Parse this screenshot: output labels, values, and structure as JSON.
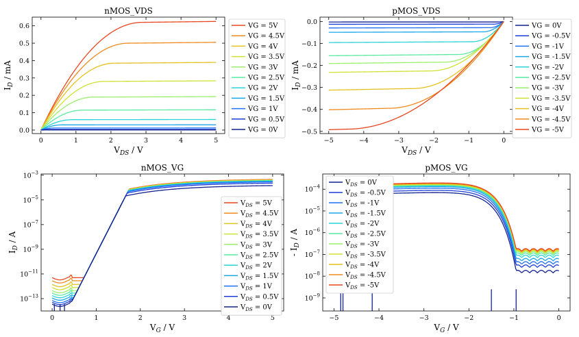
{
  "chart_data": [
    {
      "type": "line",
      "title": "nMOS_VDS",
      "xlabel": {
        "main": "V",
        "sub": "DS",
        "unit": " / V"
      },
      "ylabel": {
        "main": "I",
        "sub": "D",
        "unit": " / mA"
      },
      "xlim": [
        -0.25,
        5.25
      ],
      "ylim": [
        -0.02,
        0.65
      ],
      "yscale": "linear",
      "xticks": [
        0,
        1,
        2,
        3,
        4,
        5
      ],
      "yticks": [
        0.0,
        0.1,
        0.2,
        0.3,
        0.4,
        0.5,
        0.6
      ],
      "ytick_labels": [
        "0.0",
        "0.1",
        "0.2",
        "0.3",
        "0.4",
        "0.5",
        "0.6"
      ],
      "legend_placement": "right",
      "model": "nmos_vds",
      "series": [
        {
          "name": "VG = 5V",
          "label": {
            "text": "VG = 5V"
          },
          "color": "#e8461f",
          "isat": 0.62,
          "vsat": 2.9
        },
        {
          "name": "VG = 4.5V",
          "label": {
            "text": "VG = 4.5V"
          },
          "color": "#f08a1c",
          "isat": 0.5,
          "vsat": 2.5
        },
        {
          "name": "VG = 4V",
          "label": {
            "text": "VG = 4V"
          },
          "color": "#e3c11f",
          "isat": 0.385,
          "vsat": 2.1
        },
        {
          "name": "VG = 3.5V",
          "label": {
            "text": "VG = 3.5V"
          },
          "color": "#cfe233",
          "isat": 0.28,
          "vsat": 1.8
        },
        {
          "name": "VG = 3V",
          "label": {
            "text": "VG = 3V"
          },
          "color": "#9af06a",
          "isat": 0.19,
          "vsat": 1.5
        },
        {
          "name": "VG = 2.5V",
          "label": {
            "text": "VG = 2.5V"
          },
          "color": "#5aeaa0",
          "isat": 0.115,
          "vsat": 1.2
        },
        {
          "name": "VG = 2V",
          "label": {
            "text": "VG = 2V"
          },
          "color": "#29d3d8",
          "isat": 0.06,
          "vsat": 0.9
        },
        {
          "name": "VG = 1.5V",
          "label": {
            "text": "VG = 1.5V"
          },
          "color": "#1aa6ea",
          "isat": 0.03,
          "vsat": 0.6
        },
        {
          "name": "VG = 1V",
          "label": {
            "text": "VG = 1V"
          },
          "color": "#1f6ff0",
          "isat": 0.012,
          "vsat": 0.4
        },
        {
          "name": "VG = 0.5V",
          "label": {
            "text": "VG = 0.5V"
          },
          "color": "#1e3dd6",
          "isat": 0.004,
          "vsat": 0.3
        },
        {
          "name": "VG = 0V",
          "label": {
            "text": "VG = 0V"
          },
          "color": "#13208f",
          "isat": 0.001,
          "vsat": 0.2
        }
      ]
    },
    {
      "type": "line",
      "title": "pMOS_VDS",
      "xlabel": {
        "main": "V",
        "sub": "DS",
        "unit": " / V"
      },
      "ylabel": {
        "main": "I",
        "sub": "D",
        "unit": " / mA"
      },
      "xlim": [
        -5.25,
        0.25
      ],
      "ylim": [
        -0.51,
        0.02
      ],
      "yscale": "linear",
      "xticks": [
        -5,
        -4,
        -3,
        -2,
        -1,
        0
      ],
      "yticks": [
        0.0,
        -0.1,
        -0.2,
        -0.3,
        -0.4,
        -0.5
      ],
      "ytick_labels": [
        "0.0",
        "−0.1",
        "−0.2",
        "−0.3",
        "−0.4",
        "−0.5"
      ],
      "legend_placement": "right",
      "model": "pmos_vds",
      "series": [
        {
          "name": "VG = 0V",
          "label": {
            "text": "VG = 0V"
          },
          "color": "#13208f",
          "isat": -0.002,
          "vsat": -0.2
        },
        {
          "name": "VG = -0.5V",
          "label": {
            "text": "VG = -0.5V"
          },
          "color": "#1e3dd6",
          "isat": -0.012,
          "vsat": -0.3
        },
        {
          "name": "VG = -1V",
          "label": {
            "text": "VG = -1V"
          },
          "color": "#1f6ff0",
          "isat": -0.028,
          "vsat": -0.4
        },
        {
          "name": "VG = -1.5V",
          "label": {
            "text": "VG = -1.5V"
          },
          "color": "#1aa6ea",
          "isat": -0.047,
          "vsat": -0.6
        },
        {
          "name": "VG = -2V",
          "label": {
            "text": "VG = -2V"
          },
          "color": "#29d3d8",
          "isat": -0.092,
          "vsat": -0.9
        },
        {
          "name": "VG = -2.5V",
          "label": {
            "text": "VG = -2.5V"
          },
          "color": "#5aeaa0",
          "isat": -0.15,
          "vsat": -1.3
        },
        {
          "name": "VG = -3V",
          "label": {
            "text": "VG = -3V"
          },
          "color": "#9af06a",
          "isat": -0.185,
          "vsat": -1.7
        },
        {
          "name": "VG = -3.5V",
          "label": {
            "text": "VG = -3.5V"
          },
          "color": "#cfe233",
          "isat": -0.225,
          "vsat": -2.1
        },
        {
          "name": "VG = -4V",
          "label": {
            "text": "VG = -4V"
          },
          "color": "#e3c11f",
          "isat": -0.305,
          "vsat": -2.6
        },
        {
          "name": "VG = -4.5V",
          "label": {
            "text": "VG = -4.5V"
          },
          "color": "#f08a1c",
          "isat": -0.395,
          "vsat": -3.3
        },
        {
          "name": "VG = -5V",
          "label": {
            "text": "VG = -5V"
          },
          "color": "#e8461f",
          "isat": -0.49,
          "vsat": -4.5
        }
      ]
    },
    {
      "type": "line",
      "title": "nMOS_VG",
      "xlabel": {
        "main": "V",
        "sub": "G",
        "unit": " / V"
      },
      "ylabel": {
        "main": "I",
        "sub": "D",
        "unit": " / A"
      },
      "xlim": [
        -0.25,
        5.25
      ],
      "ylim": [
        -14,
        -2.9
      ],
      "yscale": "log",
      "xticks": [
        0,
        1,
        2,
        3,
        4,
        5
      ],
      "yticks": [
        -13,
        -11,
        -9,
        -7,
        -5,
        -3
      ],
      "legend_placement": "center-right",
      "model": "nmos_vg",
      "series": [
        {
          "name": "VDS = 5V",
          "label": {
            "main": "V",
            "sub": "DS",
            "tail": " = 5V"
          },
          "color": "#e8461f",
          "off": -11.3,
          "sat": -3.3
        },
        {
          "name": "VDS = 4.5V",
          "label": {
            "main": "V",
            "sub": "DS",
            "tail": " = 4.5V"
          },
          "color": "#f08a1c",
          "off": -11.55,
          "sat": -3.32
        },
        {
          "name": "VDS = 4V",
          "label": {
            "main": "V",
            "sub": "DS",
            "tail": " = 4V"
          },
          "color": "#e3c11f",
          "off": -11.85,
          "sat": -3.34
        },
        {
          "name": "VDS = 3.5V",
          "label": {
            "main": "V",
            "sub": "DS",
            "tail": " = 3.5V"
          },
          "color": "#cfe233",
          "off": -12.1,
          "sat": -3.36
        },
        {
          "name": "VDS = 3V",
          "label": {
            "main": "V",
            "sub": "DS",
            "tail": " = 3V"
          },
          "color": "#9af06a",
          "off": -12.35,
          "sat": -3.38
        },
        {
          "name": "VDS = 2.5V",
          "label": {
            "main": "V",
            "sub": "DS",
            "tail": " = 2.5V"
          },
          "color": "#5aeaa0",
          "off": -12.55,
          "sat": -3.4
        },
        {
          "name": "VDS = 2V",
          "label": {
            "main": "V",
            "sub": "DS",
            "tail": " = 2V"
          },
          "color": "#29d3d8",
          "off": -12.75,
          "sat": -3.42
        },
        {
          "name": "VDS = 1.5V",
          "label": {
            "main": "V",
            "sub": "DS",
            "tail": " = 1.5V"
          },
          "color": "#1aa6ea",
          "off": -12.95,
          "sat": -3.45
        },
        {
          "name": "VDS = 1V",
          "label": {
            "main": "V",
            "sub": "DS",
            "tail": " = 1V"
          },
          "color": "#1f6ff0",
          "off": -13.15,
          "sat": -3.5
        },
        {
          "name": "VDS = 0.5V",
          "label": {
            "main": "V",
            "sub": "DS",
            "tail": " = 0.5V"
          },
          "color": "#1e3dd6",
          "off": -13.3,
          "sat": -3.6
        },
        {
          "name": "VDS = 0V",
          "label": {
            "main": "V",
            "sub": "DS",
            "tail": " = 0V"
          },
          "color": "#13208f",
          "off": -13.45,
          "sat": -3.8
        }
      ]
    },
    {
      "type": "line",
      "title": "pMOS_VG",
      "xlabel": {
        "main": "V",
        "sub": "G",
        "unit": " / V"
      },
      "ylabel": {
        "prefix": "- ",
        "main": "I",
        "sub": "D",
        "unit": " / A"
      },
      "xlim": [
        -5.25,
        0.25
      ],
      "ylim": [
        -9.6,
        -3.3
      ],
      "yscale": "log",
      "xticks": [
        -5,
        -4,
        -3,
        -2,
        -1,
        0
      ],
      "yticks": [
        -9,
        -8,
        -7,
        -6,
        -5,
        -4
      ],
      "legend_placement": "upper-left",
      "model": "pmos_vg",
      "series": [
        {
          "name": "VDS = 0V",
          "label": {
            "main": "V",
            "sub": "DS",
            "tail": " = 0V"
          },
          "color": "#13208f",
          "on": -4.05,
          "off": -7.85
        },
        {
          "name": "VDS = -0.5V",
          "label": {
            "main": "V",
            "sub": "DS",
            "tail": " = -0.5V"
          },
          "color": "#1e3dd6",
          "on": -3.95,
          "off": -7.6
        },
        {
          "name": "VDS = -1V",
          "label": {
            "main": "V",
            "sub": "DS",
            "tail": " = -1V"
          },
          "color": "#1f6ff0",
          "on": -3.85,
          "off": -7.45
        },
        {
          "name": "VDS = -1.5V",
          "label": {
            "main": "V",
            "sub": "DS",
            "tail": " = -1.5V"
          },
          "color": "#1aa6ea",
          "on": -3.78,
          "off": -7.3
        },
        {
          "name": "VDS = -2V",
          "label": {
            "main": "V",
            "sub": "DS",
            "tail": " = -2V"
          },
          "color": "#29d3d8",
          "on": -3.74,
          "off": -7.15
        },
        {
          "name": "VDS = -2.5V",
          "label": {
            "main": "V",
            "sub": "DS",
            "tail": " = -2.5V"
          },
          "color": "#5aeaa0",
          "on": -3.71,
          "off": -7.05
        },
        {
          "name": "VDS = -3V",
          "label": {
            "main": "V",
            "sub": "DS",
            "tail": " = -3V"
          },
          "color": "#9af06a",
          "on": -3.69,
          "off": -6.98
        },
        {
          "name": "VDS = -3.5V",
          "label": {
            "main": "V",
            "sub": "DS",
            "tail": " = -3.5V"
          },
          "color": "#cfe233",
          "on": -3.67,
          "off": -6.93
        },
        {
          "name": "VDS = -4V",
          "label": {
            "main": "V",
            "sub": "DS",
            "tail": " = -4V"
          },
          "color": "#e3c11f",
          "on": -3.65,
          "off": -6.9
        },
        {
          "name": "VDS = -4.5V",
          "label": {
            "main": "V",
            "sub": "DS",
            "tail": " = -4.5V"
          },
          "color": "#f08a1c",
          "on": -3.63,
          "off": -6.87
        },
        {
          "name": "VDS = -5V",
          "label": {
            "main": "V",
            "sub": "DS",
            "tail": " = -5V"
          },
          "color": "#e8461f",
          "on": -3.61,
          "off": -6.85
        }
      ]
    }
  ]
}
